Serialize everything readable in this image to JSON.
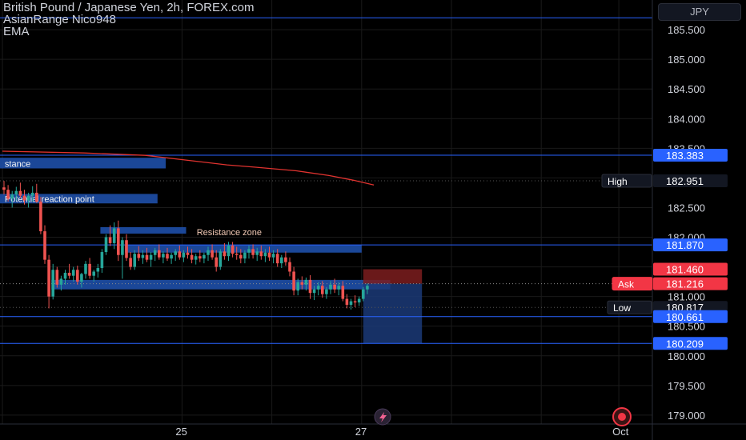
{
  "header": {
    "title": "British Pound / Japanese Yen, 2h, FOREX.com",
    "indicator_1": "AsianRange Nico948",
    "indicator_2": "EMA",
    "currency_button": "JPY"
  },
  "colors": {
    "background": "#000000",
    "up": "#26a69a",
    "down": "#ef5350",
    "ema": "#e0332f",
    "zone": "#1e4fa8",
    "blue_label": "#2962ff",
    "grid": "#1a1a1a"
  },
  "chart_data": {
    "type": "candlestick",
    "symbol": "British Pound / Japanese Yen",
    "timeframe": "2h",
    "ylim": [
      178.85,
      186.0
    ],
    "y_ticks": [
      "185.500",
      "185.000",
      "184.500",
      "184.000",
      "183.500",
      "183.000",
      "182.500",
      "182.000",
      "181.500",
      "181.000",
      "180.500",
      "180.000",
      "179.500",
      "179.000"
    ],
    "y_tick_values": [
      185.5,
      185.0,
      184.5,
      184.0,
      183.5,
      183.0,
      182.5,
      182.0,
      181.5,
      181.0,
      180.5,
      180.0,
      179.5,
      179.0
    ],
    "x_ticks": [
      {
        "label": "25",
        "index": 44
      },
      {
        "label": "27",
        "index": 88
      },
      {
        "label": "Oct",
        "index": 151
      }
    ],
    "total_slots": 160,
    "candles": [
      [
        182.84,
        182.95,
        182.72,
        182.8
      ],
      [
        182.8,
        182.88,
        182.6,
        182.65
      ],
      [
        182.65,
        182.78,
        182.5,
        182.72
      ],
      [
        182.72,
        182.85,
        182.62,
        182.78
      ],
      [
        182.78,
        182.92,
        182.66,
        182.7
      ],
      [
        182.7,
        182.8,
        182.55,
        182.62
      ],
      [
        182.62,
        182.75,
        182.5,
        182.7
      ],
      [
        182.7,
        182.86,
        182.6,
        182.75
      ],
      [
        182.75,
        182.9,
        182.58,
        182.6
      ],
      [
        182.6,
        182.68,
        182.05,
        182.1
      ],
      [
        182.1,
        182.2,
        181.55,
        181.62
      ],
      [
        181.62,
        181.7,
        180.8,
        181.0
      ],
      [
        181.0,
        181.55,
        180.95,
        181.45
      ],
      [
        181.45,
        181.5,
        181.15,
        181.2
      ],
      [
        181.2,
        181.35,
        181.1,
        181.3
      ],
      [
        181.3,
        181.45,
        181.2,
        181.4
      ],
      [
        181.4,
        181.55,
        181.3,
        181.35
      ],
      [
        181.35,
        181.5,
        181.25,
        181.45
      ],
      [
        181.45,
        181.52,
        181.2,
        181.25
      ],
      [
        181.25,
        181.4,
        181.15,
        181.38
      ],
      [
        181.38,
        181.6,
        181.3,
        181.55
      ],
      [
        181.55,
        181.65,
        181.3,
        181.35
      ],
      [
        181.35,
        181.45,
        181.25,
        181.42
      ],
      [
        181.42,
        181.55,
        181.32,
        181.48
      ],
      [
        181.48,
        181.8,
        181.4,
        181.75
      ],
      [
        181.75,
        182.05,
        181.7,
        182.0
      ],
      [
        182.0,
        182.2,
        181.85,
        181.9
      ],
      [
        181.9,
        182.25,
        181.8,
        182.15
      ],
      [
        182.15,
        182.28,
        181.6,
        181.7
      ],
      [
        181.7,
        182.0,
        181.3,
        181.95
      ],
      [
        181.95,
        182.05,
        181.6,
        181.65
      ],
      [
        181.65,
        181.75,
        181.45,
        181.5
      ],
      [
        181.5,
        181.78,
        181.45,
        181.72
      ],
      [
        181.72,
        181.85,
        181.6,
        181.65
      ],
      [
        181.65,
        181.78,
        181.55,
        181.7
      ],
      [
        181.7,
        181.82,
        181.58,
        181.62
      ],
      [
        181.62,
        181.75,
        181.5,
        181.7
      ],
      [
        181.7,
        181.82,
        181.6,
        181.78
      ],
      [
        181.78,
        181.88,
        181.62,
        181.66
      ],
      [
        181.66,
        181.76,
        181.56,
        181.72
      ],
      [
        181.72,
        181.82,
        181.6,
        181.64
      ],
      [
        181.64,
        181.74,
        181.55,
        181.7
      ],
      [
        181.7,
        181.8,
        181.6,
        181.76
      ],
      [
        181.76,
        181.86,
        181.62,
        181.66
      ],
      [
        181.66,
        181.78,
        181.58,
        181.74
      ],
      [
        181.74,
        181.84,
        181.64,
        181.7
      ],
      [
        181.7,
        181.8,
        181.56,
        181.62
      ],
      [
        181.62,
        181.72,
        181.54,
        181.68
      ],
      [
        181.68,
        181.78,
        181.58,
        181.64
      ],
      [
        181.64,
        181.74,
        181.56,
        181.7
      ],
      [
        181.7,
        181.84,
        181.6,
        181.78
      ],
      [
        181.78,
        181.88,
        181.62,
        181.66
      ],
      [
        181.66,
        181.78,
        181.42,
        181.5
      ],
      [
        181.5,
        181.8,
        181.45,
        181.76
      ],
      [
        181.76,
        181.9,
        181.62,
        181.68
      ],
      [
        181.68,
        181.92,
        181.6,
        181.86
      ],
      [
        181.86,
        181.92,
        181.66,
        181.72
      ],
      [
        181.72,
        181.84,
        181.62,
        181.7
      ],
      [
        181.7,
        181.8,
        181.56,
        181.64
      ],
      [
        181.64,
        181.78,
        181.56,
        181.74
      ],
      [
        181.74,
        181.86,
        181.64,
        181.8
      ],
      [
        181.8,
        181.88,
        181.64,
        181.7
      ],
      [
        181.7,
        181.82,
        181.6,
        181.76
      ],
      [
        181.76,
        181.86,
        181.62,
        181.68
      ],
      [
        181.68,
        181.8,
        181.58,
        181.74
      ],
      [
        181.74,
        181.84,
        181.6,
        181.66
      ],
      [
        181.66,
        181.78,
        181.56,
        181.72
      ],
      [
        181.72,
        181.8,
        181.5,
        181.56
      ],
      [
        181.56,
        181.7,
        181.48,
        181.66
      ],
      [
        181.66,
        181.76,
        181.52,
        181.58
      ],
      [
        181.58,
        181.66,
        181.34,
        181.42
      ],
      [
        181.42,
        181.5,
        181.02,
        181.1
      ],
      [
        181.1,
        181.3,
        181.02,
        181.24
      ],
      [
        181.24,
        181.34,
        181.12,
        181.2
      ],
      [
        181.2,
        181.32,
        181.1,
        181.28
      ],
      [
        181.28,
        181.36,
        180.96,
        181.06
      ],
      [
        181.06,
        181.18,
        180.94,
        181.12
      ],
      [
        181.12,
        181.24,
        181.02,
        181.18
      ],
      [
        181.18,
        181.26,
        180.98,
        181.04
      ],
      [
        181.04,
        181.16,
        180.96,
        181.12
      ],
      [
        181.12,
        181.26,
        181.04,
        181.2
      ],
      [
        181.2,
        181.3,
        181.06,
        181.12
      ],
      [
        181.12,
        181.24,
        181.02,
        181.18
      ],
      [
        181.18,
        181.26,
        180.92,
        180.96
      ],
      [
        180.96,
        181.04,
        180.8,
        180.86
      ],
      [
        180.86,
        180.96,
        180.78,
        180.92
      ],
      [
        180.92,
        181.02,
        180.82,
        180.9
      ],
      [
        180.9,
        181.0,
        180.84,
        180.96
      ],
      [
        180.96,
        181.16,
        180.92,
        181.12
      ],
      [
        181.12,
        181.22,
        181.04,
        181.18
      ]
    ],
    "ema": [
      [
        0,
        183.45
      ],
      [
        20,
        183.42
      ],
      [
        35,
        183.38
      ],
      [
        45,
        183.3
      ],
      [
        55,
        183.22
      ],
      [
        62,
        183.18
      ],
      [
        72,
        183.12
      ],
      [
        80,
        183.04
      ],
      [
        86,
        182.96
      ],
      [
        91,
        182.88
      ]
    ],
    "horizontal_lines": [
      {
        "price": 185.7,
        "color": "#2962ff"
      },
      {
        "price": 183.383,
        "color": "#2962ff"
      },
      {
        "price": 181.87,
        "color": "#2962ff"
      },
      {
        "price": 180.661,
        "color": "#2962ff"
      },
      {
        "price": 180.209,
        "color": "#2962ff"
      }
    ],
    "dotted_lines": [
      {
        "price": 182.951,
        "color": "#555555"
      },
      {
        "price": 181.216,
        "color": "#8a8a8a"
      },
      {
        "price": 180.817,
        "color": "#555555"
      }
    ],
    "zones": [
      {
        "label": "Resistance",
        "text": "stance",
        "y_top": 183.34,
        "y_bot": 183.16,
        "x_from": -1,
        "x_to": 40
      },
      {
        "label": "Potential reaction point",
        "text": "Potential reaction point",
        "y_top": 182.73,
        "y_bot": 182.57,
        "x_from": -1,
        "x_to": 38
      },
      {
        "label": "",
        "text": "",
        "y_top": 182.17,
        "y_bot": 182.06,
        "x_from": 24,
        "x_to": 45
      },
      {
        "label": "Resistance zone",
        "text": "",
        "y_top": 181.87,
        "y_bot": 181.74,
        "x_from": 30,
        "x_to": 88
      },
      {
        "label": "",
        "text": "",
        "y_top": 181.28,
        "y_bot": 181.12,
        "x_from": 12,
        "x_to": 95
      }
    ],
    "annotations": [
      {
        "text": "Resistance zone",
        "price": 182.01,
        "index": 57
      }
    ],
    "position": {
      "entry": 181.216,
      "stop": 181.46,
      "target": 180.209,
      "from_index": 88,
      "to_index": 102
    },
    "price_labels": [
      {
        "text": "183.383",
        "price": 183.383,
        "bg": "#2962ff",
        "fg": "#ffffff"
      },
      {
        "text": "182.951",
        "price": 182.951,
        "bg": "#131722",
        "fg": "#ffffff",
        "tag": "High"
      },
      {
        "text": "181.870",
        "price": 181.87,
        "bg": "#2962ff",
        "fg": "#ffffff"
      },
      {
        "text": "181.460",
        "price": 181.46,
        "bg": "#f23645",
        "fg": "#ffffff"
      },
      {
        "text": "181.216",
        "price": 181.216,
        "bg": "#f23645",
        "fg": "#ffffff",
        "tag": "Ask"
      },
      {
        "text": "180.817",
        "price": 180.817,
        "bg": "#131722",
        "fg": "#ffffff",
        "tag": "Low"
      },
      {
        "text": "180.661",
        "price": 180.661,
        "bg": "#2962ff",
        "fg": "#ffffff"
      },
      {
        "text": "180.209",
        "price": 180.209,
        "bg": "#2962ff",
        "fg": "#ffffff"
      }
    ]
  }
}
